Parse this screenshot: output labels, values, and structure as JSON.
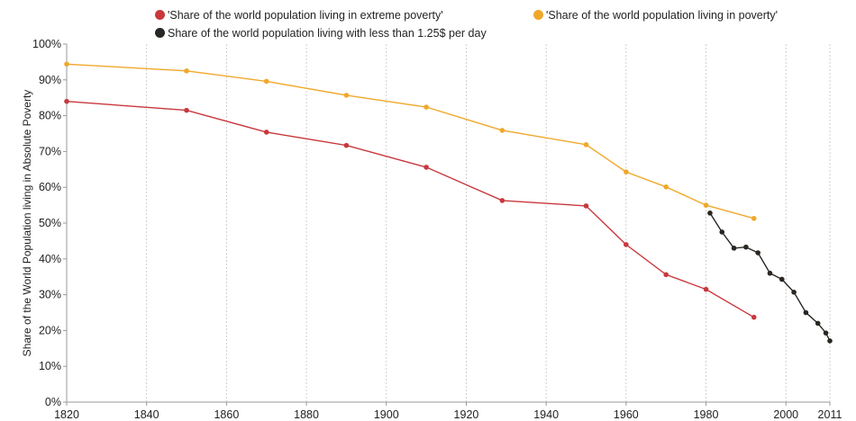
{
  "chart_data": {
    "type": "line",
    "title": "",
    "xlabel": "",
    "ylabel": "Share of the World Population living in Absolute Poverty",
    "xlim": [
      1820,
      2011
    ],
    "ylim": [
      0,
      100
    ],
    "x_ticks": [
      1820,
      1840,
      1860,
      1880,
      1900,
      1920,
      1940,
      1960,
      1980,
      2000,
      2011
    ],
    "y_ticks": [
      0,
      10,
      20,
      30,
      40,
      50,
      60,
      70,
      80,
      90,
      100
    ],
    "y_tick_suffix": "%",
    "grid": "vertical dotted",
    "legend_position": "top",
    "series": [
      {
        "name": "'Share of the world population living in extreme poverty'",
        "color": "#c8383c",
        "points": [
          [
            1820,
            84
          ],
          [
            1850,
            81.5
          ],
          [
            1870,
            75.4
          ],
          [
            1890,
            71.7
          ],
          [
            1910,
            65.6
          ],
          [
            1929,
            56.3
          ],
          [
            1950,
            54.8
          ],
          [
            1960,
            44
          ],
          [
            1970,
            35.6
          ],
          [
            1980,
            31.5
          ],
          [
            1992,
            23.7
          ]
        ]
      },
      {
        "name": "'Share of the world population living in poverty'",
        "color": "#f0a82a",
        "points": [
          [
            1820,
            94.4
          ],
          [
            1850,
            92.5
          ],
          [
            1870,
            89.6
          ],
          [
            1890,
            85.7
          ],
          [
            1910,
            82.4
          ],
          [
            1929,
            75.9
          ],
          [
            1950,
            71.9
          ],
          [
            1960,
            64.3
          ],
          [
            1970,
            60.1
          ],
          [
            1980,
            55
          ],
          [
            1992,
            51.3
          ]
        ]
      },
      {
        "name": "Share of the world population living with less than 1.25$ per day",
        "color": "#2a2622",
        "points": [
          [
            1981,
            52.8
          ],
          [
            1984,
            47.5
          ],
          [
            1987,
            43
          ],
          [
            1990,
            43.3
          ],
          [
            1993,
            41.7
          ],
          [
            1996,
            36
          ],
          [
            1999,
            34.3
          ],
          [
            2002,
            30.7
          ],
          [
            2005,
            25
          ],
          [
            2008,
            22
          ],
          [
            2010,
            19.3
          ],
          [
            2011,
            17.1
          ]
        ]
      }
    ]
  }
}
